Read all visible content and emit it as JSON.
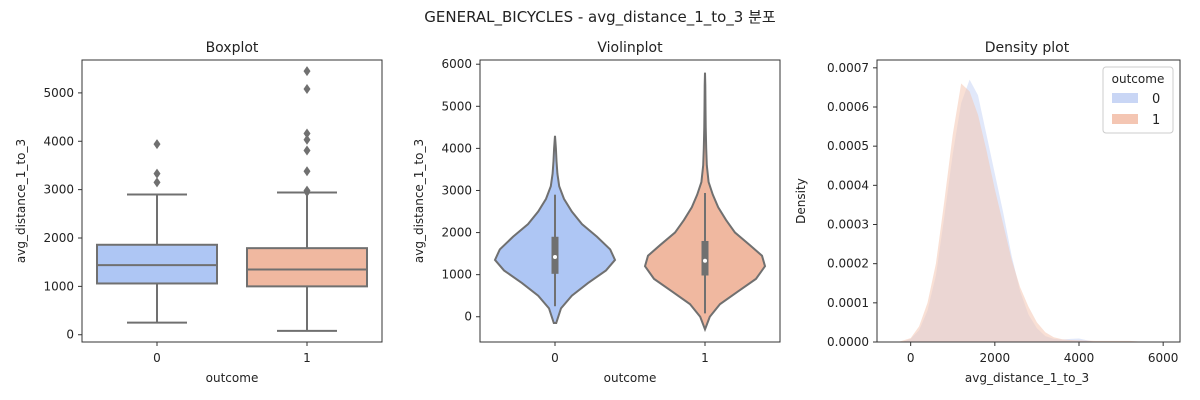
{
  "suptitle": "GENERAL_BICYCLES - avg_distance_1_to_3 분포",
  "colors": {
    "cat0": "#aec6f4",
    "cat1": "#f0b8a0",
    "stroke": "#707070",
    "kde0": "#c9d6f5",
    "kde1": "#f4c6b3"
  },
  "chart_data": [
    {
      "type": "box",
      "title": "Boxplot",
      "xlabel": "outcome",
      "ylabel": "avg_distance_1_to_3",
      "categories": [
        "0",
        "1"
      ],
      "ylim": [
        -150,
        5680
      ],
      "yticks": [
        0,
        1000,
        2000,
        3000,
        4000,
        5000
      ],
      "boxes": [
        {
          "name": "0",
          "min": 250,
          "q1": 1060,
          "median": 1440,
          "q3": 1860,
          "max": 2900,
          "outliers": [
            3150,
            3330,
            3940
          ]
        },
        {
          "name": "1",
          "min": 80,
          "q1": 1000,
          "median": 1350,
          "q3": 1790,
          "max": 2940,
          "outliers": [
            2950,
            2980,
            3380,
            3810,
            4030,
            4160,
            5080,
            5450
          ]
        }
      ]
    },
    {
      "type": "violin",
      "title": "Violinplot",
      "xlabel": "outcome",
      "ylabel": "avg_distance_1_to_3",
      "categories": [
        "0",
        "1"
      ],
      "ylim": [
        -600,
        6100
      ],
      "yticks": [
        0,
        1000,
        2000,
        3000,
        4000,
        5000,
        6000
      ],
      "violins": [
        {
          "name": "0",
          "min": -150,
          "max": 4300,
          "q1": 1020,
          "median": 1420,
          "q3": 1900,
          "whisker_low": 250,
          "whisker_high": 2900,
          "profile": [
            [
              -150,
              0.02
            ],
            [
              200,
              0.1
            ],
            [
              500,
              0.28
            ],
            [
              800,
              0.55
            ],
            [
              1100,
              0.85
            ],
            [
              1350,
              1.0
            ],
            [
              1600,
              0.92
            ],
            [
              1900,
              0.7
            ],
            [
              2200,
              0.45
            ],
            [
              2500,
              0.28
            ],
            [
              2800,
              0.15
            ],
            [
              3100,
              0.07
            ],
            [
              3400,
              0.04
            ],
            [
              3700,
              0.025
            ],
            [
              4000,
              0.015
            ],
            [
              4300,
              0.0
            ]
          ]
        },
        {
          "name": "1",
          "min": -300,
          "max": 5800,
          "q1": 980,
          "median": 1330,
          "q3": 1800,
          "whisker_low": 80,
          "whisker_high": 2940,
          "profile": [
            [
              -300,
              0.0
            ],
            [
              0,
              0.08
            ],
            [
              300,
              0.25
            ],
            [
              600,
              0.55
            ],
            [
              900,
              0.85
            ],
            [
              1200,
              1.0
            ],
            [
              1450,
              0.95
            ],
            [
              1700,
              0.75
            ],
            [
              2000,
              0.5
            ],
            [
              2300,
              0.35
            ],
            [
              2600,
              0.22
            ],
            [
              2900,
              0.13
            ],
            [
              3200,
              0.06
            ],
            [
              3600,
              0.03
            ],
            [
              4000,
              0.02
            ],
            [
              4500,
              0.012
            ],
            [
              5000,
              0.008
            ],
            [
              5500,
              0.005
            ],
            [
              5800,
              0.0
            ]
          ]
        }
      ]
    },
    {
      "type": "area",
      "title": "Density plot",
      "xlabel": "avg_distance_1_to_3",
      "ylabel": "Density",
      "xlim": [
        -800,
        6400
      ],
      "ylim": [
        0,
        0.00072
      ],
      "xticks": [
        0,
        2000,
        4000,
        6000
      ],
      "yticks": [
        0,
        0.0001,
        0.0002,
        0.0003,
        0.0004,
        0.0005,
        0.0006,
        0.0007
      ],
      "ytick_labels": [
        "0.0000",
        "0.0001",
        "0.0002",
        "0.0003",
        "0.0004",
        "0.0005",
        "0.0006",
        "0.0007"
      ],
      "legend": {
        "title": "outcome",
        "placement": "top-right",
        "entries": [
          "0",
          "1"
        ]
      },
      "series": [
        {
          "name": "0",
          "x": [
            -200,
            0,
            200,
            400,
            600,
            800,
            1000,
            1200,
            1400,
            1600,
            1800,
            2000,
            2200,
            2400,
            2600,
            2800,
            3000,
            3200,
            3400,
            3600,
            3800,
            4000,
            4200,
            4400
          ],
          "y": [
            0.0,
            8e-06,
            3e-05,
            8e-05,
            0.00017,
            0.00032,
            0.00048,
            0.00061,
            0.00067,
            0.00063,
            0.00053,
            0.00043,
            0.00033,
            0.00022,
            0.00013,
            7e-05,
            3.5e-05,
            1.5e-05,
            8e-06,
            6e-06,
            8e-06,
            9e-06,
            4e-06,
            0.0
          ]
        },
        {
          "name": "1",
          "x": [
            -300,
            0,
            200,
            400,
            600,
            800,
            1000,
            1200,
            1400,
            1600,
            1800,
            2000,
            2200,
            2400,
            2600,
            2800,
            3000,
            3200,
            3400,
            3600,
            3800,
            4000,
            4400,
            4800,
            5200,
            5600
          ],
          "y": [
            0.0,
            1e-05,
            4e-05,
            0.0001,
            0.0002,
            0.00036,
            0.00053,
            0.00066,
            0.00064,
            0.00058,
            0.00049,
            0.00039,
            0.0003,
            0.00021,
            0.00014,
            9e-05,
            5e-05,
            2.5e-05,
            1.2e-05,
            7e-06,
            5e-06,
            4e-06,
            3e-06,
            3e-06,
            3e-06,
            0.0
          ]
        }
      ]
    }
  ]
}
